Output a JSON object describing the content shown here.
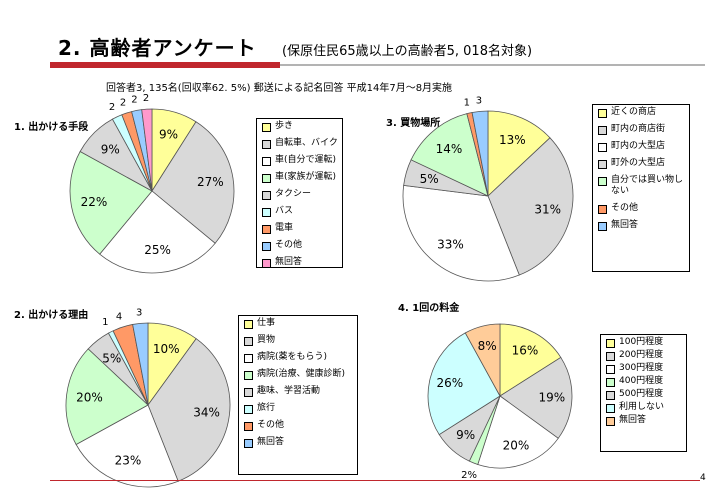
{
  "header": {
    "title": "2. 高齢者アンケート",
    "subtitle": "(保原住民65歳以上の高齢者5, 018名対象)",
    "note": "回答者3, 135名(回収率62. 5%)  郵送による記名回答  平成14年7月～8月実施"
  },
  "page_number": "4",
  "chart_data": [
    {
      "type": "pie",
      "title": "1. 出かける手段",
      "categories": [
        "歩き",
        "自転車、バイク",
        "車(自分で運転)",
        "車(家族が運転)",
        "タクシー",
        "バス",
        "電車",
        "その他",
        "無回答"
      ],
      "values": [
        9,
        27,
        25,
        22,
        9,
        2,
        2,
        2,
        2
      ],
      "labels": [
        "9%",
        "27%",
        "25%",
        "22%",
        "9%",
        "2",
        "2",
        "2",
        "2"
      ],
      "colors": [
        "#ffff99",
        "#d9d9d9",
        "#ffffff",
        "#ccffcc",
        "#d9d9d9",
        "#ccffff",
        "#ff9966",
        "#99ccff",
        "#ff99cc"
      ],
      "legend_position": "right"
    },
    {
      "type": "pie",
      "title": "3. 買物場所",
      "categories": [
        "近くの商店",
        "町内の商店街",
        "町内の大型店",
        "町外の大型店",
        "自分では買い物しない",
        "その他",
        "無回答"
      ],
      "values": [
        13,
        31,
        33,
        5,
        14,
        1,
        3
      ],
      "labels": [
        "13%",
        "31%",
        "33%",
        "5%",
        "14%",
        "1",
        "3"
      ],
      "colors": [
        "#ffff99",
        "#d9d9d9",
        "#ffffff",
        "#d9d9d9",
        "#ccffcc",
        "#ff9966",
        "#99ccff"
      ],
      "legend_position": "right"
    },
    {
      "type": "pie",
      "title": "2. 出かける理由",
      "categories": [
        "仕事",
        "買物",
        "病院(薬をもらう)",
        "病院(治療、健康診断)",
        "趣味、学習活動",
        "旅行",
        "その他",
        "無回答"
      ],
      "values": [
        10,
        34,
        23,
        20,
        5,
        1,
        4,
        3
      ],
      "labels": [
        "10%",
        "34%",
        "23%",
        "20%",
        "5%",
        "1",
        "4",
        "3"
      ],
      "colors": [
        "#ffff99",
        "#d9d9d9",
        "#ffffff",
        "#ccffcc",
        "#d9d9d9",
        "#ccffff",
        "#ff9966",
        "#99ccff"
      ],
      "legend_position": "right"
    },
    {
      "type": "pie",
      "title": "4. 1回の料金",
      "categories": [
        "100円程度",
        "200円程度",
        "300円程度",
        "400円程度",
        "500円程度",
        "利用しない",
        "無回答"
      ],
      "values": [
        16,
        19,
        20,
        2,
        9,
        26,
        8
      ],
      "labels": [
        "16%",
        "19%",
        "20%",
        "2%",
        "9%",
        "26%",
        "8%"
      ],
      "colors": [
        "#ffff99",
        "#d9d9d9",
        "#ffffff",
        "#ccffcc",
        "#d9d9d9",
        "#ccffff",
        "#ffcc99"
      ],
      "legend_position": "right"
    }
  ]
}
